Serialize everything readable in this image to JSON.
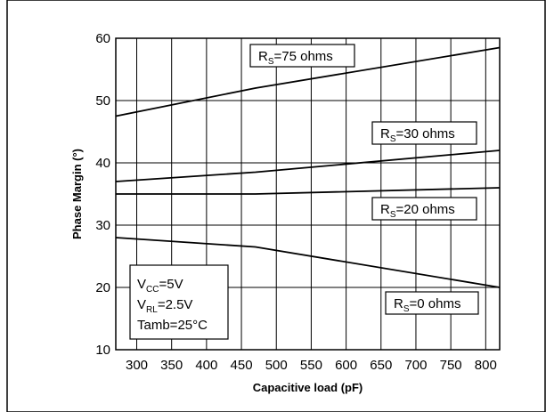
{
  "chart_data": {
    "type": "line",
    "xlabel": "Capacitive load (pF)",
    "ylabel": "Phase Margin (°)",
    "xlim": [
      270,
      820
    ],
    "ylim": [
      10,
      60
    ],
    "x_ticks": [
      300,
      350,
      400,
      450,
      500,
      550,
      600,
      650,
      700,
      750,
      800
    ],
    "y_ticks": [
      10,
      20,
      30,
      40,
      50,
      60
    ],
    "grid": true,
    "series": [
      {
        "name": "R_S=75 ohms",
        "label_main": "R",
        "label_sub": "S",
        "label_rest": "=75 ohms",
        "points": [
          [
            270,
            47.5
          ],
          [
            470,
            52
          ],
          [
            820,
            58.5
          ]
        ]
      },
      {
        "name": "R_S=30 ohms",
        "label_main": "R",
        "label_sub": "S",
        "label_rest": "=30 ohms",
        "points": [
          [
            270,
            37
          ],
          [
            470,
            38.5
          ],
          [
            820,
            42
          ]
        ]
      },
      {
        "name": "R_S=20 ohms",
        "label_main": "R",
        "label_sub": "S",
        "label_rest": "=20 ohms",
        "points": [
          [
            270,
            35
          ],
          [
            470,
            35
          ],
          [
            820,
            36
          ]
        ]
      },
      {
        "name": "R_S=0 ohms",
        "label_main": "R",
        "label_sub": "S",
        "label_rest": "=0 ohms",
        "points": [
          [
            270,
            28
          ],
          [
            470,
            26.5
          ],
          [
            820,
            20
          ]
        ]
      }
    ],
    "conditions": [
      {
        "main": "V",
        "sub": "CC",
        "rest": "=5V"
      },
      {
        "main": "V",
        "sub": "RL",
        "rest": "=2.5V"
      },
      {
        "main": "Tamb=25°C",
        "sub": "",
        "rest": ""
      }
    ]
  }
}
